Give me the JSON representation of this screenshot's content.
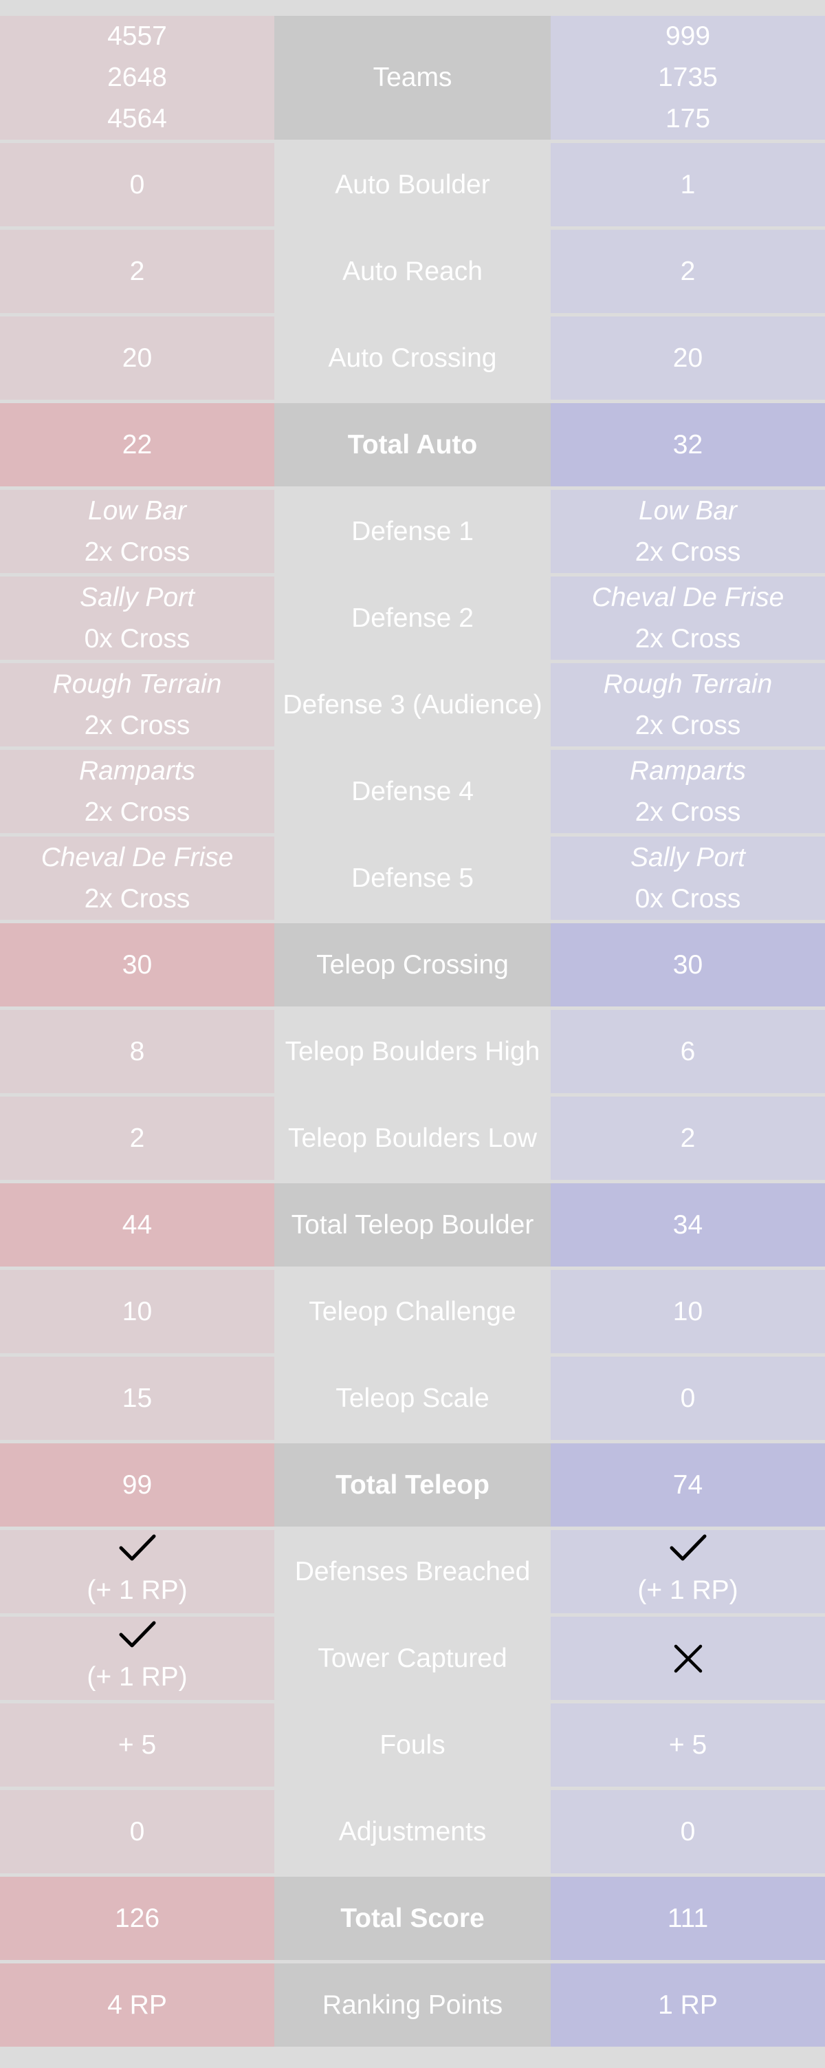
{
  "colors": {
    "page_bg": "#dcdcdc",
    "red_cell": "#ddcfd2",
    "red_highlight": "#deb9bd",
    "blue_cell": "#d0d0e2",
    "blue_highlight": "#bebedf",
    "center_highlight": "#c9c9c9",
    "text": "#ffffff",
    "icon": "#000000"
  },
  "teams": {
    "label": "Teams",
    "red": [
      "4557",
      "2648",
      "4564"
    ],
    "blue": [
      "999",
      "1735",
      "175"
    ]
  },
  "rows": [
    {
      "key": "auto-boulder",
      "label": "Auto Boulder",
      "red": "0",
      "blue": "1"
    },
    {
      "key": "auto-reach",
      "label": "Auto Reach",
      "red": "2",
      "blue": "2"
    },
    {
      "key": "auto-crossing",
      "label": "Auto Crossing",
      "red": "20",
      "blue": "20"
    },
    {
      "key": "total-auto",
      "label": "Total Auto",
      "red": "22",
      "blue": "32"
    },
    {
      "key": "defense-1",
      "label": "Defense 1",
      "red": {
        "name": "Low Bar",
        "cross": "2x Cross"
      },
      "blue": {
        "name": "Low Bar",
        "cross": "2x Cross"
      }
    },
    {
      "key": "defense-2",
      "label": "Defense 2",
      "red": {
        "name": "Sally Port",
        "cross": "0x Cross"
      },
      "blue": {
        "name": "Cheval De Frise",
        "cross": "2x Cross"
      }
    },
    {
      "key": "defense-3",
      "label": "Defense 3 (Audience)",
      "red": {
        "name": "Rough Terrain",
        "cross": "2x Cross"
      },
      "blue": {
        "name": "Rough Terrain",
        "cross": "2x Cross"
      }
    },
    {
      "key": "defense-4",
      "label": "Defense 4",
      "red": {
        "name": "Ramparts",
        "cross": "2x Cross"
      },
      "blue": {
        "name": "Ramparts",
        "cross": "2x Cross"
      }
    },
    {
      "key": "defense-5",
      "label": "Defense 5",
      "red": {
        "name": "Cheval De Frise",
        "cross": "2x Cross"
      },
      "blue": {
        "name": "Sally Port",
        "cross": "0x Cross"
      }
    },
    {
      "key": "teleop-crossing",
      "label": "Teleop Crossing",
      "red": "30",
      "blue": "30"
    },
    {
      "key": "teleop-boulders-high",
      "label": "Teleop Boulders High",
      "red": "8",
      "blue": "6"
    },
    {
      "key": "teleop-boulders-low",
      "label": "Teleop Boulders Low",
      "red": "2",
      "blue": "2"
    },
    {
      "key": "total-teleop-boulder",
      "label": "Total Teleop Boulder",
      "red": "44",
      "blue": "34"
    },
    {
      "key": "teleop-challenge",
      "label": "Teleop Challenge",
      "red": "10",
      "blue": "10"
    },
    {
      "key": "teleop-scale",
      "label": "Teleop Scale",
      "red": "15",
      "blue": "0"
    },
    {
      "key": "total-teleop",
      "label": "Total Teleop",
      "red": "99",
      "blue": "74"
    },
    {
      "key": "defenses-breached",
      "label": "Defenses Breached",
      "red": {
        "icon": "check-icon",
        "text": "(+ 1 RP)"
      },
      "blue": {
        "icon": "check-icon",
        "text": "(+ 1 RP)"
      }
    },
    {
      "key": "tower-captured",
      "label": "Tower Captured",
      "red": {
        "icon": "check-icon",
        "text": "(+ 1 RP)"
      },
      "blue": {
        "icon": "cross-icon",
        "text": ""
      }
    },
    {
      "key": "fouls",
      "label": "Fouls",
      "red": "+ 5",
      "blue": "+ 5"
    },
    {
      "key": "adjustments",
      "label": "Adjustments",
      "red": "0",
      "blue": "0"
    },
    {
      "key": "total-score",
      "label": "Total Score",
      "red": "126",
      "blue": "111"
    },
    {
      "key": "ranking-points",
      "label": "Ranking Points",
      "red": "4 RP",
      "blue": "1 RP"
    }
  ]
}
